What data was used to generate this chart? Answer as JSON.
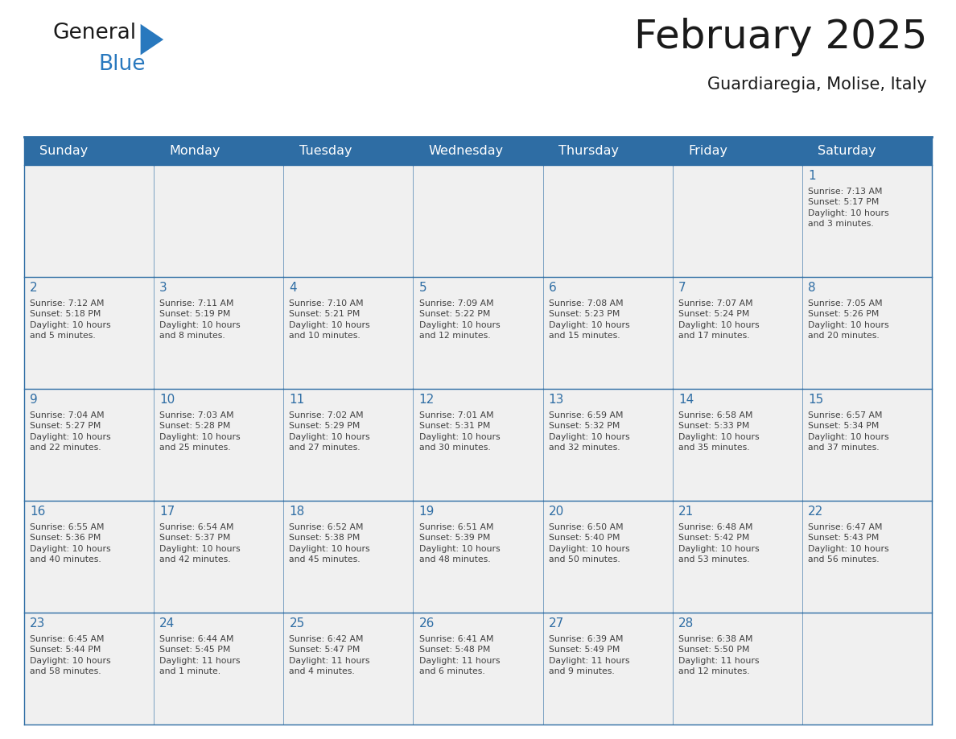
{
  "title": "February 2025",
  "subtitle": "Guardiaregia, Molise, Italy",
  "header_color": "#2E6DA4",
  "header_text_color": "#FFFFFF",
  "cell_bg_color": "#F0F0F0",
  "border_color": "#2E6DA4",
  "text_color": "#404040",
  "day_number_color": "#2E6DA4",
  "days_of_week": [
    "Sunday",
    "Monday",
    "Tuesday",
    "Wednesday",
    "Thursday",
    "Friday",
    "Saturday"
  ],
  "weeks": [
    [
      {
        "day": "",
        "info": ""
      },
      {
        "day": "",
        "info": ""
      },
      {
        "day": "",
        "info": ""
      },
      {
        "day": "",
        "info": ""
      },
      {
        "day": "",
        "info": ""
      },
      {
        "day": "",
        "info": ""
      },
      {
        "day": "1",
        "info": "Sunrise: 7:13 AM\nSunset: 5:17 PM\nDaylight: 10 hours\nand 3 minutes."
      }
    ],
    [
      {
        "day": "2",
        "info": "Sunrise: 7:12 AM\nSunset: 5:18 PM\nDaylight: 10 hours\nand 5 minutes."
      },
      {
        "day": "3",
        "info": "Sunrise: 7:11 AM\nSunset: 5:19 PM\nDaylight: 10 hours\nand 8 minutes."
      },
      {
        "day": "4",
        "info": "Sunrise: 7:10 AM\nSunset: 5:21 PM\nDaylight: 10 hours\nand 10 minutes."
      },
      {
        "day": "5",
        "info": "Sunrise: 7:09 AM\nSunset: 5:22 PM\nDaylight: 10 hours\nand 12 minutes."
      },
      {
        "day": "6",
        "info": "Sunrise: 7:08 AM\nSunset: 5:23 PM\nDaylight: 10 hours\nand 15 minutes."
      },
      {
        "day": "7",
        "info": "Sunrise: 7:07 AM\nSunset: 5:24 PM\nDaylight: 10 hours\nand 17 minutes."
      },
      {
        "day": "8",
        "info": "Sunrise: 7:05 AM\nSunset: 5:26 PM\nDaylight: 10 hours\nand 20 minutes."
      }
    ],
    [
      {
        "day": "9",
        "info": "Sunrise: 7:04 AM\nSunset: 5:27 PM\nDaylight: 10 hours\nand 22 minutes."
      },
      {
        "day": "10",
        "info": "Sunrise: 7:03 AM\nSunset: 5:28 PM\nDaylight: 10 hours\nand 25 minutes."
      },
      {
        "day": "11",
        "info": "Sunrise: 7:02 AM\nSunset: 5:29 PM\nDaylight: 10 hours\nand 27 minutes."
      },
      {
        "day": "12",
        "info": "Sunrise: 7:01 AM\nSunset: 5:31 PM\nDaylight: 10 hours\nand 30 minutes."
      },
      {
        "day": "13",
        "info": "Sunrise: 6:59 AM\nSunset: 5:32 PM\nDaylight: 10 hours\nand 32 minutes."
      },
      {
        "day": "14",
        "info": "Sunrise: 6:58 AM\nSunset: 5:33 PM\nDaylight: 10 hours\nand 35 minutes."
      },
      {
        "day": "15",
        "info": "Sunrise: 6:57 AM\nSunset: 5:34 PM\nDaylight: 10 hours\nand 37 minutes."
      }
    ],
    [
      {
        "day": "16",
        "info": "Sunrise: 6:55 AM\nSunset: 5:36 PM\nDaylight: 10 hours\nand 40 minutes."
      },
      {
        "day": "17",
        "info": "Sunrise: 6:54 AM\nSunset: 5:37 PM\nDaylight: 10 hours\nand 42 minutes."
      },
      {
        "day": "18",
        "info": "Sunrise: 6:52 AM\nSunset: 5:38 PM\nDaylight: 10 hours\nand 45 minutes."
      },
      {
        "day": "19",
        "info": "Sunrise: 6:51 AM\nSunset: 5:39 PM\nDaylight: 10 hours\nand 48 minutes."
      },
      {
        "day": "20",
        "info": "Sunrise: 6:50 AM\nSunset: 5:40 PM\nDaylight: 10 hours\nand 50 minutes."
      },
      {
        "day": "21",
        "info": "Sunrise: 6:48 AM\nSunset: 5:42 PM\nDaylight: 10 hours\nand 53 minutes."
      },
      {
        "day": "22",
        "info": "Sunrise: 6:47 AM\nSunset: 5:43 PM\nDaylight: 10 hours\nand 56 minutes."
      }
    ],
    [
      {
        "day": "23",
        "info": "Sunrise: 6:45 AM\nSunset: 5:44 PM\nDaylight: 10 hours\nand 58 minutes."
      },
      {
        "day": "24",
        "info": "Sunrise: 6:44 AM\nSunset: 5:45 PM\nDaylight: 11 hours\nand 1 minute."
      },
      {
        "day": "25",
        "info": "Sunrise: 6:42 AM\nSunset: 5:47 PM\nDaylight: 11 hours\nand 4 minutes."
      },
      {
        "day": "26",
        "info": "Sunrise: 6:41 AM\nSunset: 5:48 PM\nDaylight: 11 hours\nand 6 minutes."
      },
      {
        "day": "27",
        "info": "Sunrise: 6:39 AM\nSunset: 5:49 PM\nDaylight: 11 hours\nand 9 minutes."
      },
      {
        "day": "28",
        "info": "Sunrise: 6:38 AM\nSunset: 5:50 PM\nDaylight: 11 hours\nand 12 minutes."
      },
      {
        "day": "",
        "info": ""
      }
    ]
  ],
  "logo_general_color": "#1a1a1a",
  "logo_blue_color": "#2878BE",
  "logo_triangle_color": "#2878BE",
  "title_color": "#1a1a1a",
  "subtitle_color": "#1a1a1a"
}
